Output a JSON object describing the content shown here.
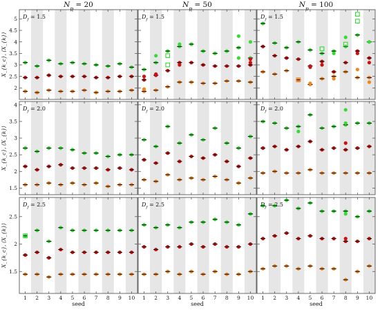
{
  "chart_data": {
    "type": "scatter",
    "layout": "3x3 grid of panels",
    "column_titles": [
      "N_p = 20",
      "N_p = 50",
      "N_p = 100"
    ],
    "row_labels": [
      "D_f = 1.5",
      "D_f = 2.0",
      "D_f = 2.5"
    ],
    "ylabel": "X_{k_c}, ⟨X_{k}⟩",
    "xlabel": "seed",
    "x_ticks": [
      "1",
      "2",
      "3",
      "4",
      "5",
      "6",
      "7",
      "8",
      "9",
      "10"
    ],
    "rows": [
      {
        "ylim": [
          1.5,
          5.4
        ],
        "yticks": [
          "2",
          "2.5",
          "3",
          "3.5",
          "4",
          "4.5",
          "5"
        ],
        "yticks_values": [
          2,
          2.5,
          3,
          3.5,
          4,
          4.5,
          5
        ],
        "panels": [
          {
            "annotation": "D_f = 1.5",
            "series": [
              {
                "color": "#33dd33",
                "values": [
                  3.1,
                  2.95,
                  3.2,
                  3.05,
                  3.1,
                  3.05,
                  3.0,
                  2.95,
                  3.05,
                  2.9
                ]
              },
              {
                "color": "#cc1111",
                "values": [
                  2.45,
                  2.45,
                  2.55,
                  2.5,
                  2.5,
                  2.5,
                  2.45,
                  2.45,
                  2.5,
                  2.5
                ]
              },
              {
                "color": "#ee8822",
                "values": [
                  1.85,
                  1.8,
                  1.9,
                  1.85,
                  1.85,
                  1.9,
                  1.8,
                  1.85,
                  1.85,
                  1.9
                ]
              }
            ],
            "extras": []
          },
          {
            "annotation": "D_f = 1.5",
            "series": [
              {
                "color": "#33dd33",
                "values": [
                  2.8,
                  3.1,
                  3.6,
                  3.8,
                  3.9,
                  3.6,
                  3.5,
                  3.6,
                  3.75,
                  3.3
                ]
              },
              {
                "color": "#cc1111",
                "values": [
                  2.35,
                  2.55,
                  2.75,
                  3.1,
                  3.1,
                  3.0,
                  2.95,
                  2.95,
                  2.95,
                  3.0
                ]
              },
              {
                "color": "#ee8822",
                "values": [
                  1.85,
                  1.9,
                  2.05,
                  2.25,
                  2.25,
                  2.2,
                  2.2,
                  2.3,
                  2.3,
                  2.25
                ]
              }
            ],
            "extras": [
              {
                "x": 1,
                "y": 1.95,
                "color": "#ee8822",
                "kind": "dot"
              },
              {
                "x": 1,
                "y": 2.5,
                "color": "#cc1111",
                "kind": "dot"
              },
              {
                "x": 2,
                "y": 2.6,
                "color": "#cc1111",
                "kind": "dot"
              },
              {
                "x": 2,
                "y": 3.4,
                "color": "#33dd33",
                "kind": "dot"
              },
              {
                "x": 3,
                "y": 3.4,
                "color": "#33dd33",
                "kind": "square"
              },
              {
                "x": 3,
                "y": 3.0,
                "color": "#33dd33",
                "kind": "square"
              },
              {
                "x": 4,
                "y": 3.0,
                "color": "#cc1111",
                "kind": "dot"
              },
              {
                "x": 4,
                "y": 3.9,
                "color": "#33dd33",
                "kind": "dot"
              },
              {
                "x": 9,
                "y": 4.25,
                "color": "#33dd33",
                "kind": "dot"
              },
              {
                "x": 9,
                "y": 3.3,
                "color": "#33dd33",
                "kind": "dot"
              },
              {
                "x": 10,
                "y": 3.1,
                "color": "#cc1111",
                "kind": "dot"
              },
              {
                "x": 10,
                "y": 3.25,
                "color": "#cc1111",
                "kind": "dot"
              },
              {
                "x": 10,
                "y": 4.0,
                "color": "#33dd33",
                "kind": "dot"
              }
            ]
          },
          {
            "annotation": "D_f = 1.5",
            "series": [
              {
                "color": "#33dd33",
                "values": [
                  4.8,
                  3.95,
                  3.75,
                  4.0,
                  3.65,
                  3.5,
                  3.6,
                  3.8,
                  4.3,
                  4.0
                ]
              },
              {
                "color": "#cc1111",
                "values": [
                  3.8,
                  3.4,
                  3.3,
                  3.25,
                  2.95,
                  3.15,
                  2.7,
                  3.1,
                  3.6,
                  3.3
                ]
              },
              {
                "color": "#ee8822",
                "values": [
                  2.7,
                  2.6,
                  2.75,
                  2.35,
                  2.15,
                  2.4,
                  2.5,
                  2.7,
                  2.45,
                  2.45
                ]
              }
            ],
            "extras": [
              {
                "x": 4,
                "y": 2.35,
                "color": "#ee8822",
                "kind": "square"
              },
              {
                "x": 5,
                "y": 2.9,
                "color": "#cc1111",
                "kind": "dot"
              },
              {
                "x": 5,
                "y": 2.2,
                "color": "#ee8822",
                "kind": "dot"
              },
              {
                "x": 6,
                "y": 3.0,
                "color": "#cc1111",
                "kind": "dot"
              },
              {
                "x": 6,
                "y": 3.7,
                "color": "#33dd33",
                "kind": "square"
              },
              {
                "x": 7,
                "y": 2.4,
                "color": "#ee8822",
                "kind": "dot"
              },
              {
                "x": 7,
                "y": 3.5,
                "color": "#33dd33",
                "kind": "dot"
              },
              {
                "x": 8,
                "y": 4.2,
                "color": "#33dd33",
                "kind": "dot"
              },
              {
                "x": 8,
                "y": 3.9,
                "color": "#33dd33",
                "kind": "square"
              },
              {
                "x": 9,
                "y": 5.2,
                "color": "#33dd33",
                "kind": "square"
              },
              {
                "x": 9,
                "y": 4.9,
                "color": "#33dd33",
                "kind": "square"
              },
              {
                "x": 9,
                "y": 3.5,
                "color": "#cc1111",
                "kind": "dot"
              },
              {
                "x": 9,
                "y": 2.8,
                "color": "#ee8822",
                "kind": "dot"
              },
              {
                "x": 10,
                "y": 4.0,
                "color": "#33dd33",
                "kind": "dot"
              },
              {
                "x": 10,
                "y": 3.1,
                "color": "#cc1111",
                "kind": "dot"
              },
              {
                "x": 10,
                "y": 2.25,
                "color": "#ee8822",
                "kind": "dot"
              }
            ]
          }
        ]
      },
      {
        "ylim": [
          1.3,
          4.1
        ],
        "yticks": [
          "1.5",
          "2",
          "2.5",
          "3",
          "3.5",
          "4"
        ],
        "yticks_values": [
          1.5,
          2,
          2.5,
          3,
          3.5,
          4
        ],
        "panels": [
          {
            "annotation": "D_f = 2.0",
            "series": [
              {
                "color": "#33dd33",
                "values": [
                  2.7,
                  2.6,
                  2.7,
                  2.7,
                  2.65,
                  2.55,
                  2.55,
                  2.45,
                  2.5,
                  2.5
                ]
              },
              {
                "color": "#cc1111",
                "values": [
                  2.15,
                  2.05,
                  2.15,
                  2.2,
                  2.1,
                  2.1,
                  2.1,
                  2.05,
                  2.1,
                  2.05
                ]
              },
              {
                "color": "#ee8822",
                "values": [
                  1.6,
                  1.6,
                  1.65,
                  1.6,
                  1.65,
                  1.6,
                  1.65,
                  1.55,
                  1.6,
                  1.6
                ]
              }
            ],
            "extras": []
          },
          {
            "annotation": "D_f = 2.0",
            "series": [
              {
                "color": "#33dd33",
                "values": [
                  2.95,
                  2.75,
                  3.35,
                  2.85,
                  3.1,
                  2.95,
                  3.3,
                  2.85,
                  2.7,
                  3.05
                ]
              },
              {
                "color": "#cc1111",
                "values": [
                  2.35,
                  2.25,
                  2.55,
                  2.3,
                  2.45,
                  2.4,
                  2.5,
                  2.3,
                  2.15,
                  2.4
                ]
              },
              {
                "color": "#ee8822",
                "values": [
                  1.75,
                  1.7,
                  1.9,
                  1.75,
                  1.8,
                  1.75,
                  1.85,
                  1.75,
                  1.65,
                  1.8
                ]
              }
            ],
            "extras": []
          },
          {
            "annotation": "D_f = 2.0",
            "series": [
              {
                "color": "#33dd33",
                "values": [
                  3.5,
                  3.45,
                  3.3,
                  3.35,
                  3.7,
                  3.3,
                  3.35,
                  3.4,
                  3.45,
                  3.45
                ]
              },
              {
                "color": "#cc1111",
                "values": [
                  2.7,
                  2.75,
                  2.65,
                  2.75,
                  2.9,
                  2.65,
                  2.7,
                  2.65,
                  2.7,
                  2.75
                ]
              },
              {
                "color": "#ee8822",
                "values": [
                  1.95,
                  2.0,
                  1.95,
                  1.95,
                  2.05,
                  1.95,
                  1.95,
                  1.95,
                  1.95,
                  1.95
                ]
              }
            ],
            "extras": [
              {
                "x": 4,
                "y": 3.2,
                "color": "#33dd33",
                "kind": "dot"
              },
              {
                "x": 8,
                "y": 3.85,
                "color": "#33dd33",
                "kind": "dot"
              },
              {
                "x": 8,
                "y": 3.45,
                "color": "#33dd33",
                "kind": "dot"
              },
              {
                "x": 8,
                "y": 2.85,
                "color": "#cc1111",
                "kind": "dot"
              }
            ]
          }
        ]
      },
      {
        "ylim": [
          1.1,
          2.85
        ],
        "yticks": [
          "1.5",
          "2",
          "2.5"
        ],
        "yticks_values": [
          1.5,
          2,
          2.5
        ],
        "panels": [
          {
            "annotation": "D_f = 2.5",
            "series": [
              {
                "color": "#33dd33",
                "values": [
                  2.15,
                  2.25,
                  2.05,
                  2.3,
                  2.25,
                  2.25,
                  2.25,
                  2.25,
                  2.25,
                  2.25
                ]
              },
              {
                "color": "#cc1111",
                "values": [
                  1.8,
                  1.85,
                  1.75,
                  1.9,
                  1.85,
                  1.85,
                  1.85,
                  1.85,
                  1.85,
                  1.85
                ]
              },
              {
                "color": "#ee8822",
                "values": [
                  1.45,
                  1.45,
                  1.4,
                  1.45,
                  1.45,
                  1.45,
                  1.45,
                  1.45,
                  1.45,
                  1.45
                ]
              }
            ],
            "extras": [
              {
                "x": 1,
                "y": 2.15,
                "color": "#33dd33",
                "kind": "square"
              }
            ]
          },
          {
            "annotation": "D_f = 2.5",
            "series": [
              {
                "color": "#33dd33",
                "values": [
                  2.35,
                  2.3,
                  2.35,
                  2.3,
                  2.4,
                  2.4,
                  2.45,
                  2.4,
                  2.35,
                  2.55
                ]
              },
              {
                "color": "#cc1111",
                "values": [
                  1.95,
                  1.9,
                  1.95,
                  1.95,
                  2.0,
                  1.95,
                  2.0,
                  1.95,
                  1.95,
                  2.0
                ]
              },
              {
                "color": "#ee8822",
                "values": [
                  1.45,
                  1.45,
                  1.5,
                  1.45,
                  1.5,
                  1.45,
                  1.5,
                  1.45,
                  1.45,
                  1.5
                ]
              }
            ],
            "extras": []
          },
          {
            "annotation": "D_f = 2.5",
            "series": [
              {
                "color": "#33dd33",
                "values": [
                  2.7,
                  2.7,
                  2.8,
                  2.65,
                  2.75,
                  2.6,
                  2.6,
                  2.6,
                  2.5,
                  2.6
                ]
              },
              {
                "color": "#cc1111",
                "values": [
                  2.1,
                  2.15,
                  2.2,
                  2.1,
                  2.15,
                  2.1,
                  2.1,
                  2.05,
                  2.05,
                  2.1
                ]
              },
              {
                "color": "#ee8822",
                "values": [
                  1.55,
                  1.6,
                  1.6,
                  1.55,
                  1.6,
                  1.55,
                  1.55,
                  1.35,
                  1.5,
                  1.6
                ]
              }
            ],
            "extras": [
              {
                "x": 8,
                "y": 2.55,
                "color": "#33dd33",
                "kind": "dot"
              },
              {
                "x": 8,
                "y": 2.1,
                "color": "#cc1111",
                "kind": "dot"
              }
            ]
          }
        ]
      }
    ]
  }
}
